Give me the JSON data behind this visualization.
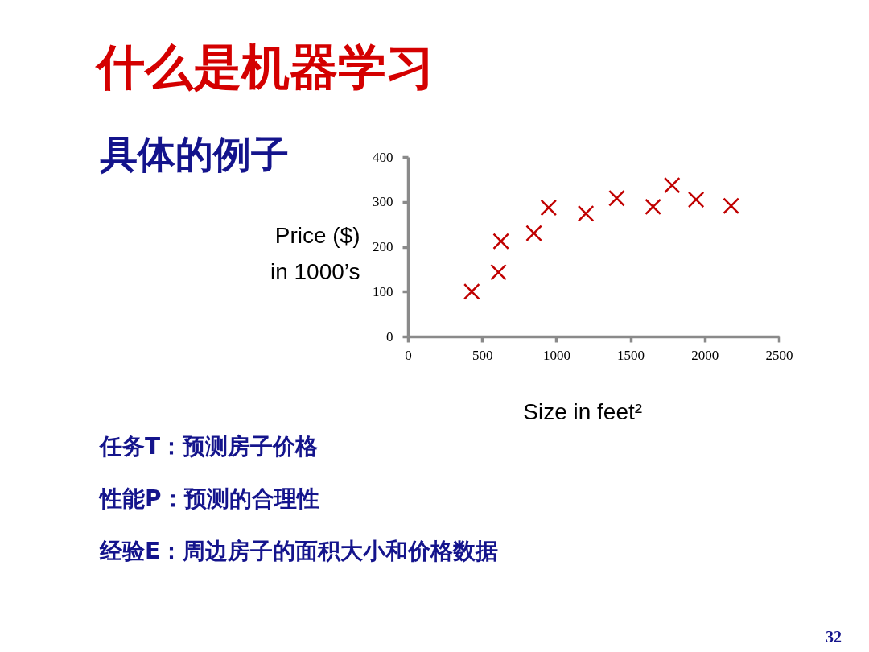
{
  "chart_data": {
    "type": "scatter",
    "title": "什么是机器学习",
    "subtitle": "具体的例子",
    "xlabel": "Size in feet²",
    "ylabel": "Price ($)\nin 1000’s",
    "x": [
      430,
      610,
      627,
      849,
      948,
      1199,
      1407,
      1652,
      1780,
      1942,
      2178
    ],
    "values": [
      100,
      143,
      212,
      230,
      287,
      274,
      308,
      289,
      337,
      305,
      291
    ],
    "color": "#c00000",
    "marker": "cross",
    "xlim": [
      0,
      2500
    ],
    "xticks": [
      0,
      500,
      1000,
      1500,
      2000,
      2500
    ],
    "ylim": [
      0,
      400
    ],
    "yticks": [
      0,
      100,
      200,
      300,
      400
    ],
    "annotations": [
      "任务T：预测房子价格",
      "性能P：预测的合理性",
      "经验E：周边房子的面积大小和价格数据",
      "32"
    ]
  }
}
